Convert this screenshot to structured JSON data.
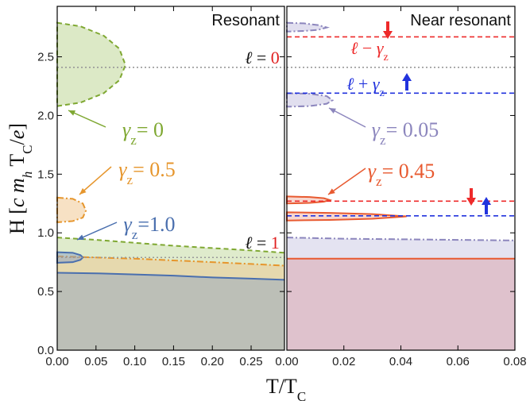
{
  "chart_data": [
    {
      "type": "area",
      "xlim": [
        0,
        0.293
      ],
      "ylim": [
        0,
        2.93
      ],
      "xticks": [
        {
          "value": 0,
          "label": "0.00"
        },
        0.05,
        {
          "value": 0.1,
          "label": "0.10"
        },
        0.15,
        {
          "value": 0.2,
          "label": "0.20"
        },
        0.25
      ],
      "yticks": [
        {
          "value": 0,
          "label": "0.0"
        },
        0.5,
        {
          "value": 1,
          "label": "1.0"
        },
        1.5,
        {
          "value": 2,
          "label": "2.0"
        },
        2.5
      ],
      "ylabel": {
        "parts": [
          {
            "text": "H [",
            "style": "normal"
          },
          {
            "text": "c m",
            "style": "italic"
          },
          {
            "text": "h",
            "style": "sub-italic"
          },
          {
            "text": " T",
            "style": "normal"
          },
          {
            "text": "C",
            "style": "sub"
          },
          {
            "text": "/",
            "style": "normal"
          },
          {
            "text": "e",
            "style": "italic"
          },
          {
            "text": "]",
            "style": "normal"
          }
        ]
      },
      "xlabel": {
        "parts": [
          {
            "text": "T/T",
            "style": "normal"
          },
          {
            "text": "C",
            "style": "sub"
          }
        ]
      },
      "series": [
        {
          "kind": "region",
          "color": "#7fa832",
          "fill": "#b9d38d",
          "dash": "dashed",
          "x": [
            0,
            0.05,
            0.1,
            0.15,
            0.2,
            0.25,
            0.293
          ],
          "values": [
            0.96,
            0.94,
            0.915,
            0.89,
            0.87,
            0.85,
            0.83
          ]
        },
        {
          "kind": "region",
          "color": "#e6962d",
          "fill": "#f0c48a",
          "dash": "dashdot",
          "x": [
            0,
            0.05,
            0.1,
            0.15,
            0.2,
            0.25,
            0.293
          ],
          "values": [
            0.8,
            0.79,
            0.78,
            0.765,
            0.75,
            0.735,
            0.72
          ]
        },
        {
          "kind": "region",
          "color": "#4a6fae",
          "fill": "#8a9fc4",
          "dash": "solid",
          "x": [
            0,
            0.05,
            0.1,
            0.15,
            0.2,
            0.25,
            0.293
          ],
          "values": [
            0.66,
            0.655,
            0.645,
            0.635,
            0.62,
            0.61,
            0.6
          ]
        },
        {
          "kind": "bubble",
          "color": "#7fa832",
          "fill": "#b9d38d",
          "dash": "dashed",
          "x": [
            0,
            0.03,
            0.06,
            0.08,
            0.088,
            0.08,
            0.06,
            0.03,
            0
          ],
          "values": [
            2.79,
            2.76,
            2.68,
            2.57,
            2.43,
            2.3,
            2.19,
            2.11,
            2.08
          ]
        },
        {
          "kind": "bubble",
          "color": "#e6962d",
          "fill": "#f0c48a",
          "dash": "dashdot",
          "x": [
            0,
            0.02,
            0.033,
            0.037,
            0.033,
            0.02,
            0
          ],
          "values": [
            1.3,
            1.29,
            1.25,
            1.19,
            1.13,
            1.1,
            1.09
          ]
        },
        {
          "kind": "bubble",
          "color": "#4a6fae",
          "fill": "#8a9fc4",
          "dash": "solid",
          "x": [
            0,
            0.02,
            0.03,
            0.033,
            0.03,
            0.02,
            0
          ],
          "values": [
            0.835,
            0.83,
            0.81,
            0.79,
            0.77,
            0.75,
            0.745
          ]
        }
      ],
      "hlines": [
        {
          "y": 2.41,
          "color": "#999999",
          "dash": "dotted"
        },
        {
          "y": 0.79,
          "color": "#999999",
          "dash": "dotted"
        }
      ],
      "annotations": [
        {
          "color": "#111111",
          "parts": [
            {
              "text": "Resonant",
              "style": "plain"
            }
          ]
        },
        {
          "color": "#111111",
          "parts": [
            {
              "text": "ℓ",
              "style": "italic"
            },
            {
              "text": " = ",
              "style": "normal"
            },
            {
              "text": "0",
              "style": "normal",
              "color": "#e02020"
            }
          ]
        },
        {
          "color": "#111111",
          "parts": [
            {
              "text": "ℓ",
              "style": "italic"
            },
            {
              "text": " = ",
              "style": "normal"
            },
            {
              "text": "1",
              "style": "normal",
              "color": "#e02020"
            }
          ]
        },
        {
          "color": "#7fa832",
          "parts": [
            {
              "text": "γ",
              "style": "italic"
            },
            {
              "text": "z",
              "style": "sub"
            },
            {
              "text": "= 0",
              "style": "normal"
            }
          ]
        },
        {
          "color": "#e6962d",
          "parts": [
            {
              "text": "γ",
              "style": "italic"
            },
            {
              "text": "z",
              "style": "sub"
            },
            {
              "text": "= 0.5",
              "style": "normal"
            }
          ]
        },
        {
          "color": "#4a6fae",
          "parts": [
            {
              "text": "γ",
              "style": "italic"
            },
            {
              "text": "z",
              "style": "sub"
            },
            {
              "text": "=1.0",
              "style": "normal"
            }
          ]
        }
      ]
    },
    {
      "type": "area",
      "xlim": [
        0,
        0.08
      ],
      "ylim": [
        0,
        2.93
      ],
      "xticks": [
        {
          "value": 0,
          "label": "0.00"
        },
        0.02,
        0.04,
        0.06,
        0.08
      ],
      "yticks": [
        0,
        0.5,
        1,
        1.5,
        2,
        2.5
      ],
      "ytick_labels": false,
      "series": [
        {
          "kind": "region",
          "color": "#8c86bd",
          "fill": "#c4c0e0",
          "dash": "dashdot",
          "x": [
            0,
            0.02,
            0.04,
            0.06,
            0.08
          ],
          "values": [
            0.96,
            0.95,
            0.945,
            0.94,
            0.935
          ]
        },
        {
          "kind": "region",
          "color": "#e85a30",
          "fill": "#d99aa2",
          "dash": "solid",
          "x": [
            0,
            0.02,
            0.04,
            0.06,
            0.08
          ],
          "values": [
            0.78,
            0.78,
            0.78,
            0.78,
            0.78
          ]
        },
        {
          "kind": "bubble",
          "color": "#8c86bd",
          "fill": "#c4c0e0",
          "dash": "dashdot",
          "x": [
            0,
            0.006,
            0.011,
            0.014,
            0.011,
            0.006,
            0
          ],
          "values": [
            2.79,
            2.785,
            2.77,
            2.75,
            2.73,
            2.72,
            2.715
          ]
        },
        {
          "kind": "bubble",
          "color": "#8c86bd",
          "fill": "#c4c0e0",
          "dash": "dashdot",
          "x": [
            0,
            0.008,
            0.014,
            0.016,
            0.014,
            0.008,
            0
          ],
          "values": [
            2.19,
            2.185,
            2.165,
            2.13,
            2.1,
            2.08,
            2.075
          ]
        },
        {
          "kind": "bubble",
          "color": "#e85a30",
          "fill": "#f0b0a0",
          "dash": "solid",
          "x": [
            0,
            0.008,
            0.013,
            0.015,
            0.013,
            0.008,
            0
          ],
          "values": [
            1.31,
            1.305,
            1.295,
            1.28,
            1.265,
            1.255,
            1.25
          ]
        },
        {
          "kind": "bubble",
          "color": "#e85a30",
          "fill": "#f0b0a0",
          "dash": "solid",
          "x": [
            0,
            0.015,
            0.03,
            0.042,
            0.03,
            0.015,
            0
          ],
          "values": [
            1.175,
            1.17,
            1.16,
            1.14,
            1.12,
            1.11,
            1.105
          ]
        }
      ],
      "hlines": [
        {
          "y": 2.67,
          "color": "#ee2a2a",
          "dash": "dashed"
        },
        {
          "y": 2.41,
          "color": "#999999",
          "dash": "dotted"
        },
        {
          "y": 2.19,
          "color": "#2233dd",
          "dash": "dashed"
        },
        {
          "y": 1.27,
          "color": "#ee2a2a",
          "dash": "dashed"
        },
        {
          "y": 1.145,
          "color": "#2233dd",
          "dash": "dashed"
        }
      ],
      "annotations": [
        {
          "color": "#111111",
          "parts": [
            {
              "text": "Near resonant",
              "style": "plain"
            }
          ]
        },
        {
          "color": "#ee2a2a",
          "parts": [
            {
              "text": "ℓ",
              "style": "italic"
            },
            {
              "text": " − ",
              "style": "normal"
            },
            {
              "text": "γ",
              "style": "italic"
            },
            {
              "text": "z",
              "style": "sub"
            }
          ]
        },
        {
          "color": "#2233dd",
          "parts": [
            {
              "text": "ℓ",
              "style": "italic"
            },
            {
              "text": " + ",
              "style": "normal"
            },
            {
              "text": "γ",
              "style": "italic"
            },
            {
              "text": "z",
              "style": "sub"
            }
          ]
        },
        {
          "color": "#8c86bd",
          "parts": [
            {
              "text": "γ",
              "style": "italic"
            },
            {
              "text": "z",
              "style": "sub"
            },
            {
              "text": "= 0.05",
              "style": "normal"
            }
          ]
        },
        {
          "color": "#e85a30",
          "parts": [
            {
              "text": "γ",
              "style": "italic"
            },
            {
              "text": "z",
              "style": "sub"
            },
            {
              "text": "= 0.45",
              "style": "normal"
            }
          ]
        }
      ]
    }
  ]
}
